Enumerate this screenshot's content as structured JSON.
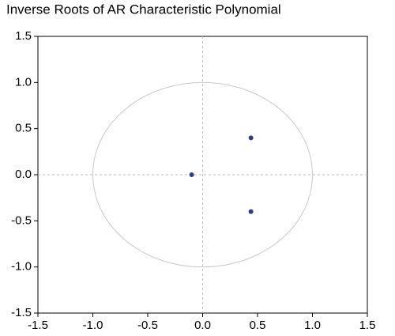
{
  "chart_data": {
    "type": "scatter",
    "title": "Inverse Roots of AR Characteristic Polynomial",
    "x": [
      -0.1,
      0.44,
      0.44
    ],
    "values": [
      0,
      0.4,
      -0.4
    ],
    "color": "#2e3f7f",
    "xlim": [
      -1.5,
      1.5
    ],
    "xticks": [
      -1.5,
      {
        "value": -1,
        "label": "-1.0"
      },
      -0.5,
      {
        "value": 0,
        "label": "0.0"
      },
      0.5,
      {
        "value": 1,
        "label": "1.0"
      },
      1.5
    ],
    "ylim": [
      -1.5,
      1.5
    ],
    "yticks": [
      -1.5,
      {
        "value": -1,
        "label": "-1.0"
      },
      -0.5,
      {
        "value": 0,
        "label": "0.0"
      },
      0.5,
      {
        "value": 1,
        "label": "1.0"
      },
      1.5
    ],
    "unit_circle": true,
    "zero_lines": true
  }
}
